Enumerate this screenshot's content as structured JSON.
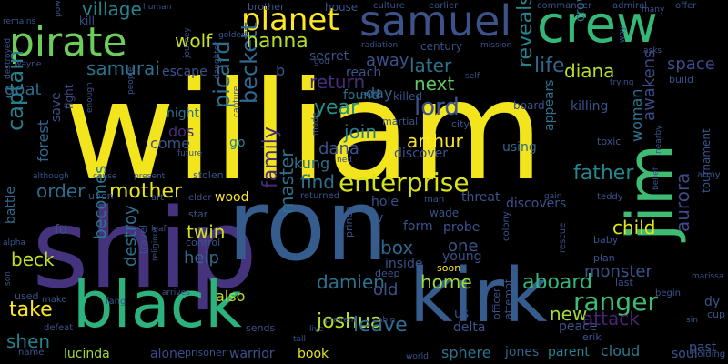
{
  "background": "#000000",
  "words": [
    {
      "text": "william",
      "size": 150,
      "color": "#f2e51d"
    },
    {
      "text": "ship",
      "size": 120,
      "color": "#46337e"
    },
    {
      "text": "ron",
      "size": 108,
      "color": "#365c8d"
    },
    {
      "text": "black",
      "size": 70,
      "color": "#2db27d"
    },
    {
      "text": "kirk",
      "size": 82,
      "color": "#365c8d"
    },
    {
      "text": "jim",
      "size": 70,
      "color": "#3fbc73"
    },
    {
      "text": "crew",
      "size": 56,
      "color": "#35b779"
    },
    {
      "text": "samuel",
      "size": 46,
      "color": "#3b528b"
    },
    {
      "text": "pirate",
      "size": 44,
      "color": "#6ccd5a"
    },
    {
      "text": "planet",
      "size": 34,
      "color": "#fde725"
    },
    {
      "text": "enterprise",
      "size": 28,
      "color": "#d8e219"
    },
    {
      "text": "lord",
      "size": 26,
      "color": "#3b528b"
    },
    {
      "text": "ranger",
      "size": 28,
      "color": "#3dbc74"
    },
    {
      "text": "captain",
      "size": 24,
      "color": "#277f8e"
    },
    {
      "text": "beckett",
      "size": 24,
      "color": "#31688e"
    },
    {
      "text": "picard",
      "size": 24,
      "color": "#2c718e"
    },
    {
      "text": "hanna",
      "size": 22,
      "color": "#b5de2b"
    },
    {
      "text": "wolf",
      "size": 20,
      "color": "#c8e020"
    },
    {
      "text": "samurai",
      "size": 20,
      "color": "#2c728e"
    },
    {
      "text": "village",
      "size": 20,
      "color": "#26828e"
    },
    {
      "text": "goat",
      "size": 18,
      "color": "#2f6c8e"
    },
    {
      "text": "later",
      "size": 20,
      "color": "#2c728e"
    },
    {
      "text": "life",
      "size": 22,
      "color": "#31678e"
    },
    {
      "text": "diana",
      "size": 20,
      "color": "#b8de29"
    },
    {
      "text": "space",
      "size": 18,
      "color": "#3e4a89"
    },
    {
      "text": "reveals",
      "size": 22,
      "color": "#26828e"
    },
    {
      "text": "return",
      "size": 20,
      "color": "#472d7b"
    },
    {
      "text": "next",
      "size": 20,
      "color": "#5ec962"
    },
    {
      "text": "year",
      "size": 22,
      "color": "#21918c"
    },
    {
      "text": "arthur",
      "size": 20,
      "color": "#fde725"
    },
    {
      "text": "join",
      "size": 20,
      "color": "#2a788e"
    },
    {
      "text": "dana",
      "size": 18,
      "color": "#3b528b"
    },
    {
      "text": "awakens",
      "size": 18,
      "color": "#3e4989"
    },
    {
      "text": "father",
      "size": 22,
      "color": "#24878e"
    },
    {
      "text": "mother",
      "size": 22,
      "color": "#e5e419"
    },
    {
      "text": "order",
      "size": 20,
      "color": "#2f6c8e"
    },
    {
      "text": "find",
      "size": 20,
      "color": "#2c728e"
    },
    {
      "text": "family",
      "size": 22,
      "color": "#472c7a"
    },
    {
      "text": "master",
      "size": 20,
      "color": "#2c718e"
    },
    {
      "text": "twin",
      "size": 20,
      "color": "#d0e11c"
    },
    {
      "text": "box",
      "size": 20,
      "color": "#31678e"
    },
    {
      "text": "one",
      "size": 18,
      "color": "#3b528b"
    },
    {
      "text": "child",
      "size": 20,
      "color": "#e2e418"
    },
    {
      "text": "aurora",
      "size": 20,
      "color": "#3e4989"
    },
    {
      "text": "monster",
      "size": 18,
      "color": "#3b528b"
    },
    {
      "text": "beck",
      "size": 20,
      "color": "#c2df23"
    },
    {
      "text": "help",
      "size": 18,
      "color": "#31678e"
    },
    {
      "text": "becomes",
      "size": 18,
      "color": "#2a788e"
    },
    {
      "text": "destroy",
      "size": 18,
      "color": "#2c728e"
    },
    {
      "text": "home",
      "size": 20,
      "color": "#9bd93c"
    },
    {
      "text": "aboard",
      "size": 22,
      "color": "#35b779"
    },
    {
      "text": "damien",
      "size": 20,
      "color": "#2c728e"
    },
    {
      "text": "joshua",
      "size": 22,
      "color": "#b5de2b"
    },
    {
      "text": "leave",
      "size": 22,
      "color": "#2e6e8e"
    },
    {
      "text": "take",
      "size": 22,
      "color": "#fde725"
    },
    {
      "text": "shen",
      "size": 20,
      "color": "#26828e"
    },
    {
      "text": "new",
      "size": 20,
      "color": "#a2da37"
    },
    {
      "text": "attack",
      "size": 20,
      "color": "#482475"
    },
    {
      "text": "woman",
      "size": 16,
      "color": "#2c728e"
    },
    {
      "text": "lucinda",
      "size": 14,
      "color": "#a0da39"
    },
    {
      "text": "alone",
      "size": 14,
      "color": "#3e4989"
    },
    {
      "text": "warrior",
      "size": 14,
      "color": "#3b528b"
    },
    {
      "text": "book",
      "size": 14,
      "color": "#e5e419"
    },
    {
      "text": "jones",
      "size": 14,
      "color": "#31678e"
    },
    {
      "text": "parent",
      "size": 14,
      "color": "#25848e"
    },
    {
      "text": "cloud",
      "size": 16,
      "color": "#2a788e"
    },
    {
      "text": "soul",
      "size": 14,
      "color": "#3b528b"
    },
    {
      "text": "past",
      "size": 14,
      "color": "#3b528b"
    },
    {
      "text": "sphere",
      "size": 16,
      "color": "#2c728e"
    },
    {
      "text": "also",
      "size": 16,
      "color": "#bddf26"
    },
    {
      "text": "old",
      "size": 18,
      "color": "#3b528b"
    },
    {
      "text": "come",
      "size": 16,
      "color": "#3b528b"
    },
    {
      "text": "dos",
      "size": 16,
      "color": "#472c7a"
    },
    {
      "text": "kung",
      "size": 16,
      "color": "#2c728e"
    },
    {
      "text": "go",
      "size": 14,
      "color": "#26828e"
    },
    {
      "text": "wood",
      "size": 14,
      "color": "#fde725"
    },
    {
      "text": "night",
      "size": 14,
      "color": "#2c728e"
    },
    {
      "text": "forest",
      "size": 16,
      "color": "#31678e"
    },
    {
      "text": "battle",
      "size": 14,
      "color": "#31688e"
    },
    {
      "text": "save",
      "size": 14,
      "color": "#3b528b"
    },
    {
      "text": "fight",
      "size": 12,
      "color": "#3e4989"
    },
    {
      "text": "away",
      "size": 18,
      "color": "#3b528b"
    },
    {
      "text": "day",
      "size": 16,
      "color": "#31678e"
    },
    {
      "text": "secret",
      "size": 14,
      "color": "#3b528b"
    },
    {
      "text": "century",
      "size": 12,
      "color": "#3b528b"
    },
    {
      "text": "found",
      "size": 14,
      "color": "#2c728e"
    },
    {
      "text": "killed",
      "size": 12,
      "color": "#3b528b"
    },
    {
      "text": "discover",
      "size": 14,
      "color": "#3b528b"
    },
    {
      "text": "using",
      "size": 14,
      "color": "#31678e"
    },
    {
      "text": "killing",
      "size": 14,
      "color": "#3b528b"
    },
    {
      "text": "appears",
      "size": 14,
      "color": "#2c728e"
    },
    {
      "text": "escape",
      "size": 14,
      "color": "#3b528b"
    },
    {
      "text": "reach",
      "size": 14,
      "color": "#3b528b"
    },
    {
      "text": "crow",
      "size": 14,
      "color": "#2c728e"
    },
    {
      "text": "kill",
      "size": 12,
      "color": "#3b528b"
    },
    {
      "text": "house",
      "size": 12,
      "color": "#3b528b"
    },
    {
      "text": "culture",
      "size": 10,
      "color": "#3b528b"
    },
    {
      "text": "earlier",
      "size": 10,
      "color": "#3b528b"
    },
    {
      "text": "commander",
      "size": 10,
      "color": "#3b528b"
    },
    {
      "text": "admiral",
      "size": 10,
      "color": "#3b528b"
    },
    {
      "text": "offer",
      "size": 10,
      "color": "#3b528b"
    },
    {
      "text": "human",
      "size": 9,
      "color": "#3b528b"
    },
    {
      "text": "brother",
      "size": 11,
      "color": "#3b528b"
    },
    {
      "text": "mission",
      "size": 9,
      "color": "#3b528b"
    },
    {
      "text": "radiation",
      "size": 9,
      "color": "#3b528b"
    },
    {
      "text": "asks",
      "size": 9,
      "color": "#3b528b"
    },
    {
      "text": "trying",
      "size": 9,
      "color": "#3b528b"
    },
    {
      "text": "build",
      "size": 11,
      "color": "#3b528b"
    },
    {
      "text": "enough",
      "size": 9,
      "color": "#3b528b"
    },
    {
      "text": "people",
      "size": 9,
      "color": "#3b528b"
    },
    {
      "text": "martial",
      "size": 11,
      "color": "#3b528b"
    },
    {
      "text": "board",
      "size": 12,
      "color": "#3b528b"
    },
    {
      "text": "city",
      "size": 11,
      "color": "#3b528b"
    },
    {
      "text": "toxic",
      "size": 11,
      "color": "#3b528b"
    },
    {
      "text": "army",
      "size": 10,
      "color": "#3b528b"
    },
    {
      "text": "teddy",
      "size": 10,
      "color": "#3b528b"
    },
    {
      "text": "threat",
      "size": 14,
      "color": "#3b528b"
    },
    {
      "text": "discovers",
      "size": 14,
      "color": "#3b528b"
    },
    {
      "text": "hole",
      "size": 14,
      "color": "#3b528b"
    },
    {
      "text": "wade",
      "size": 12,
      "color": "#3b528b"
    },
    {
      "text": "form",
      "size": 14,
      "color": "#3b528b"
    },
    {
      "text": "probe",
      "size": 14,
      "color": "#3b528b"
    },
    {
      "text": "young",
      "size": 14,
      "color": "#3b528b"
    },
    {
      "text": "inside",
      "size": 14,
      "color": "#3b528b"
    },
    {
      "text": "deep",
      "size": 11,
      "color": "#3b528b"
    },
    {
      "text": "soon",
      "size": 11,
      "color": "#fde725"
    },
    {
      "text": "us",
      "size": 14,
      "color": "#3b528b"
    },
    {
      "text": "delta",
      "size": 14,
      "color": "#3b528b"
    },
    {
      "text": "officer",
      "size": 11,
      "color": "#3b528b"
    },
    {
      "text": "attempt",
      "size": 11,
      "color": "#3b528b"
    },
    {
      "text": "peace",
      "size": 14,
      "color": "#3b528b"
    },
    {
      "text": "erik",
      "size": 11,
      "color": "#3b528b"
    },
    {
      "text": "last",
      "size": 11,
      "color": "#3b528b"
    },
    {
      "text": "begin",
      "size": 10,
      "color": "#3b528b"
    },
    {
      "text": "dy",
      "size": 14,
      "color": "#3b528b"
    },
    {
      "text": "cup",
      "size": 11,
      "color": "#3b528b"
    },
    {
      "text": "sin",
      "size": 9,
      "color": "#3b528b"
    },
    {
      "text": "holding",
      "size": 10,
      "color": "#3b528b"
    },
    {
      "text": "marissa",
      "size": 9,
      "color": "#3b528b"
    },
    {
      "text": "tournament",
      "size": 12,
      "color": "#3b528b"
    },
    {
      "text": "baby",
      "size": 11,
      "color": "#3b528b"
    },
    {
      "text": "plan",
      "size": 11,
      "color": "#3b528b"
    },
    {
      "text": "rescue",
      "size": 10,
      "color": "#3b528b"
    },
    {
      "text": "colony",
      "size": 10,
      "color": "#3b528b"
    },
    {
      "text": "gain",
      "size": 9,
      "color": "#3b528b"
    },
    {
      "text": "man",
      "size": 10,
      "color": "#3b528b"
    },
    {
      "text": "returned",
      "size": 10,
      "color": "#3b528b"
    },
    {
      "text": "stolen",
      "size": 11,
      "color": "#3b528b"
    },
    {
      "text": "present",
      "size": 9,
      "color": "#3b528b"
    },
    {
      "text": "cause",
      "size": 9,
      "color": "#3b528b"
    },
    {
      "text": "although",
      "size": 9,
      "color": "#3b528b"
    },
    {
      "text": "upon",
      "size": 11,
      "color": "#3b528b"
    },
    {
      "text": "art",
      "size": 10,
      "color": "#3b528b"
    },
    {
      "text": "elder",
      "size": 10,
      "color": "#3b528b"
    },
    {
      "text": "star",
      "size": 11,
      "color": "#3b528b"
    },
    {
      "text": "control",
      "size": 11,
      "color": "#3b528b"
    },
    {
      "text": "leaf",
      "size": 9,
      "color": "#3b528b"
    },
    {
      "text": "travel",
      "size": 11,
      "color": "#3b528b"
    },
    {
      "text": "religious",
      "size": 9,
      "color": "#3b528b"
    },
    {
      "text": "fu",
      "size": 14,
      "color": "#3b528b"
    },
    {
      "text": "alpha",
      "size": 9,
      "color": "#3b528b"
    },
    {
      "text": "son",
      "size": 9,
      "color": "#3b528b"
    },
    {
      "text": "used",
      "size": 11,
      "color": "#3b528b"
    },
    {
      "text": "make",
      "size": 10,
      "color": "#3b528b"
    },
    {
      "text": "defeat",
      "size": 10,
      "color": "#3b528b"
    },
    {
      "text": "name",
      "size": 10,
      "color": "#3b528b"
    },
    {
      "text": "fang",
      "size": 10,
      "color": "#3b528b"
    },
    {
      "text": "arrives",
      "size": 9,
      "color": "#3b528b"
    },
    {
      "text": "sends",
      "size": 11,
      "color": "#3b528b"
    },
    {
      "text": "prisoner",
      "size": 11,
      "color": "#3b528b"
    },
    {
      "text": "tall",
      "size": 9,
      "color": "#3b528b"
    },
    {
      "text": "live",
      "size": 9,
      "color": "#3b528b"
    },
    {
      "text": "prevent",
      "size": 9,
      "color": "#3b528b"
    },
    {
      "text": "cabin",
      "size": 9,
      "color": "#3b528b"
    },
    {
      "text": "world",
      "size": 9,
      "color": "#3b528b"
    },
    {
      "text": "prince",
      "size": 11,
      "color": "#3b528b"
    },
    {
      "text": "v",
      "size": 14,
      "color": "#3b528b"
    },
    {
      "text": "b",
      "size": 16,
      "color": "#3b528b"
    },
    {
      "text": "journey",
      "size": 9,
      "color": "#3b528b"
    },
    {
      "text": "powerful",
      "size": 9,
      "color": "#3b528b"
    },
    {
      "text": "remains",
      "size": 9,
      "color": "#3b528b"
    },
    {
      "text": "golden",
      "size": 9,
      "color": "#3b528b"
    },
    {
      "text": "daughter",
      "size": 9,
      "color": "#3b528b"
    },
    {
      "text": "capture",
      "size": 9,
      "color": "#3b528b"
    },
    {
      "text": "future",
      "size": 9,
      "color": "#3b528b"
    },
    {
      "text": "god",
      "size": 9,
      "color": "#3b528b"
    },
    {
      "text": "self",
      "size": 9,
      "color": "#3b528b"
    },
    {
      "text": "early",
      "size": 9,
      "color": "#3b528b"
    },
    {
      "text": "many",
      "size": 9,
      "color": "#3b528b"
    },
    {
      "text": "way",
      "size": 9,
      "color": "#3b528b"
    },
    {
      "text": "nearby",
      "size": 9,
      "color": "#3b528b"
    },
    {
      "text": "belief",
      "size": 9,
      "color": "#3b528b"
    },
    {
      "text": "destroyed",
      "size": 9,
      "color": "#3b528b"
    },
    {
      "text": "wayne",
      "size": 9,
      "color": "#3b528b"
    },
    {
      "text": "ned",
      "size": 9,
      "color": "#3b528b"
    },
    {
      "text": "made",
      "size": 9,
      "color": "#3b528b"
    }
  ]
}
